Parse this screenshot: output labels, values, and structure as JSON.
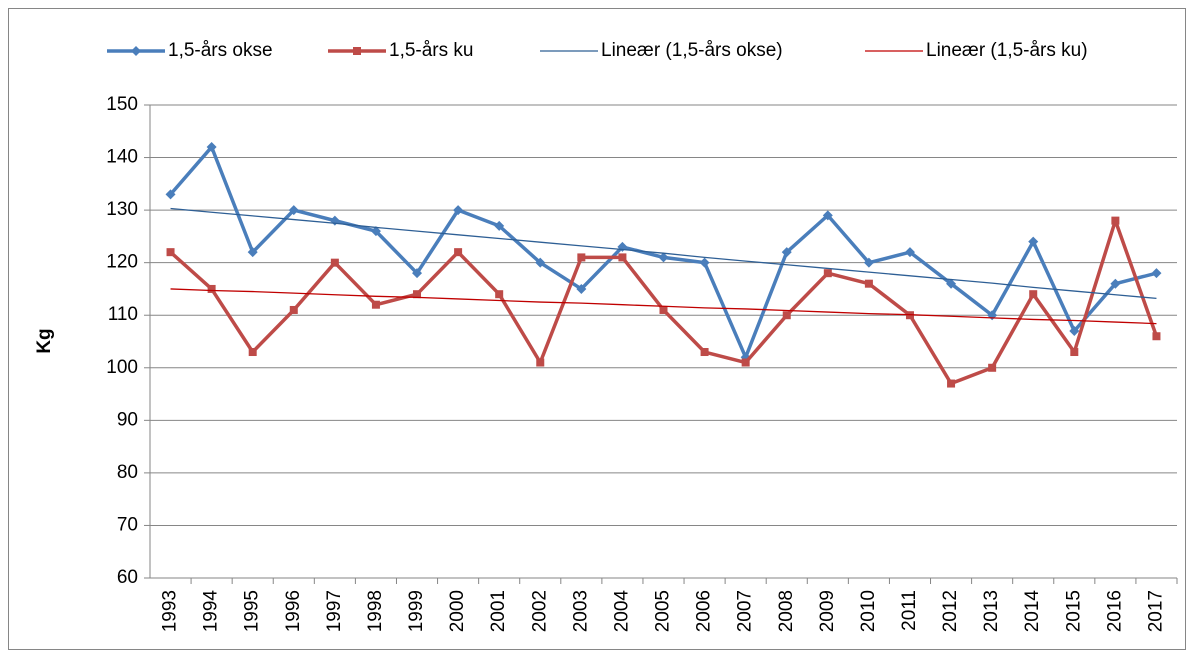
{
  "chart_data": {
    "type": "line",
    "y_label": "Kg",
    "categories": [
      "1993",
      "1994",
      "1995",
      "1996",
      "1997",
      "1998",
      "1999",
      "2000",
      "2001",
      "2002",
      "2003",
      "2004",
      "2005",
      "2006",
      "2007",
      "2008",
      "2009",
      "2010",
      "2011",
      "2012",
      "2013",
      "2014",
      "2015",
      "2016",
      "2017"
    ],
    "ylim": [
      60,
      150
    ],
    "yticks": [
      60,
      70,
      80,
      90,
      100,
      110,
      120,
      130,
      140,
      150
    ],
    "grid": true,
    "legend": "top",
    "series": [
      {
        "name": "1,5-års okse",
        "color": "#4a7ebb",
        "marker": "diamond",
        "width": 3.5,
        "values": [
          133,
          142,
          122,
          130,
          128,
          126,
          118,
          130,
          127,
          120,
          115,
          123,
          121,
          120,
          102,
          122,
          129,
          120,
          122,
          116,
          110,
          124,
          107,
          116,
          118
        ]
      },
      {
        "name": "1,5-års ku",
        "color": "#be4b48",
        "marker": "square",
        "width": 3.5,
        "values": [
          122,
          115,
          103,
          111,
          120,
          112,
          114,
          122,
          114,
          101,
          121,
          121,
          111,
          103,
          101,
          110,
          118,
          116,
          110,
          97,
          100,
          114,
          103,
          128,
          106
        ]
      },
      {
        "name": "Lineær (1,5-års okse)",
        "color": "#2e5f95",
        "width": 1.3,
        "values": [
          130.3,
          129.6,
          128.9,
          128.2,
          127.5,
          126.7,
          126.0,
          125.3,
          124.6,
          123.9,
          123.2,
          122.5,
          121.8,
          121.0,
          120.3,
          119.6,
          118.9,
          118.2,
          117.5,
          116.8,
          116.1,
          115.3,
          114.6,
          113.9,
          113.2
        ]
      },
      {
        "name": "Lineær (1,5-års ku)",
        "color": "#c00000",
        "width": 1.3,
        "values": [
          115.0,
          114.7,
          114.5,
          114.2,
          113.9,
          113.6,
          113.4,
          113.1,
          112.8,
          112.5,
          112.3,
          112.0,
          111.7,
          111.4,
          111.2,
          110.9,
          110.6,
          110.3,
          110.1,
          109.8,
          109.5,
          109.2,
          109.0,
          108.7,
          108.4
        ]
      }
    ]
  }
}
